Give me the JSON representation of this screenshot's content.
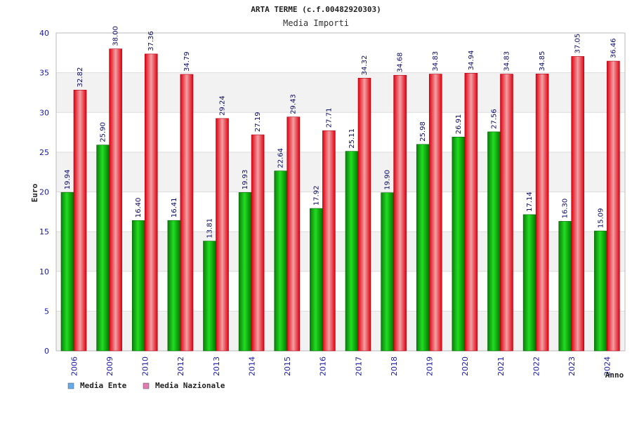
{
  "chart_data": {
    "type": "bar",
    "title": "ARTA TERME (c.f.00482920303)",
    "subtitle": "Media Importi",
    "xlabel": "Anno",
    "ylabel": "Euro",
    "ylim": [
      0,
      40
    ],
    "yticks": [
      0,
      5,
      10,
      15,
      20,
      25,
      30,
      35,
      40
    ],
    "grid": true,
    "legend_position": "bottom-left",
    "categories": [
      "2006",
      "2009",
      "2010",
      "2012",
      "2013",
      "2014",
      "2015",
      "2016",
      "2017",
      "2018",
      "2019",
      "2020",
      "2021",
      "2022",
      "2023",
      "2024"
    ],
    "series": [
      {
        "name": "Media Ente",
        "color": "#00aa00",
        "legend_color": "#66aaee",
        "values": [
          19.94,
          25.9,
          16.4,
          16.41,
          13.81,
          19.93,
          22.64,
          17.92,
          25.11,
          19.9,
          25.98,
          26.91,
          27.56,
          17.14,
          16.3,
          15.09
        ],
        "labels": [
          "19.94",
          "25.90",
          "16.40",
          "16.41",
          "13.81",
          "19.93",
          "22.64",
          "17.92",
          "25.11",
          "19.90",
          "25.98",
          "26.91",
          "27.56",
          "17.14",
          "16.30",
          "15.09"
        ]
      },
      {
        "name": "Media Nazionale",
        "color": "#e8202a",
        "legend_color": "#e07ab0",
        "values": [
          32.82,
          38.0,
          37.36,
          34.79,
          29.24,
          27.19,
          29.43,
          27.71,
          34.32,
          34.68,
          34.83,
          34.94,
          34.83,
          34.85,
          37.05,
          36.46
        ],
        "labels": [
          "32.82",
          "38.00",
          "37.36",
          "34.79",
          "29.24",
          "27.19",
          "29.43",
          "27.71",
          "34.32",
          "34.68",
          "34.83",
          "34.94",
          "34.83",
          "34.85",
          "37.05",
          "36.46"
        ]
      }
    ]
  }
}
